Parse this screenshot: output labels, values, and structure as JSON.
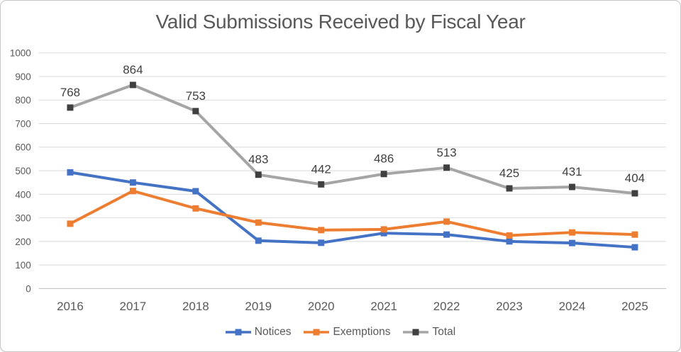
{
  "chart_data": {
    "type": "line",
    "title": "Valid Submissions Received by Fiscal Year",
    "categories": [
      "2016",
      "2017",
      "2018",
      "2019",
      "2020",
      "2021",
      "2022",
      "2023",
      "2024",
      "2025"
    ],
    "series": [
      {
        "name": "Notices",
        "color": "#4472C4",
        "marker_color": "#4472C4",
        "values": [
          493,
          450,
          413,
          203,
          194,
          235,
          229,
          200,
          193,
          175
        ],
        "data_labels": false
      },
      {
        "name": "Exemptions",
        "color": "#ED7D31",
        "marker_color": "#ED7D31",
        "values": [
          275,
          414,
          340,
          280,
          248,
          251,
          284,
          225,
          238,
          229
        ],
        "data_labels": false
      },
      {
        "name": "Total",
        "color": "#A5A5A5",
        "marker_color": "#404040",
        "values": [
          768,
          864,
          753,
          483,
          442,
          486,
          513,
          425,
          431,
          404
        ],
        "data_labels": true
      }
    ],
    "xlabel": "",
    "ylabel": "",
    "ylim": [
      0,
      1000
    ],
    "yticks": [
      0,
      100,
      200,
      300,
      400,
      500,
      600,
      700,
      800,
      900,
      1000
    ],
    "grid": true,
    "legend_position": "bottom"
  },
  "style": {
    "title_color": "#595959",
    "axis_label_color": "#595959",
    "data_label_color": "#404040",
    "gridline_color": "#D9D9D9",
    "axis_line_color": "#BFBFBF",
    "background": "#FFFFFF",
    "card_border": "#C9C7C5"
  }
}
